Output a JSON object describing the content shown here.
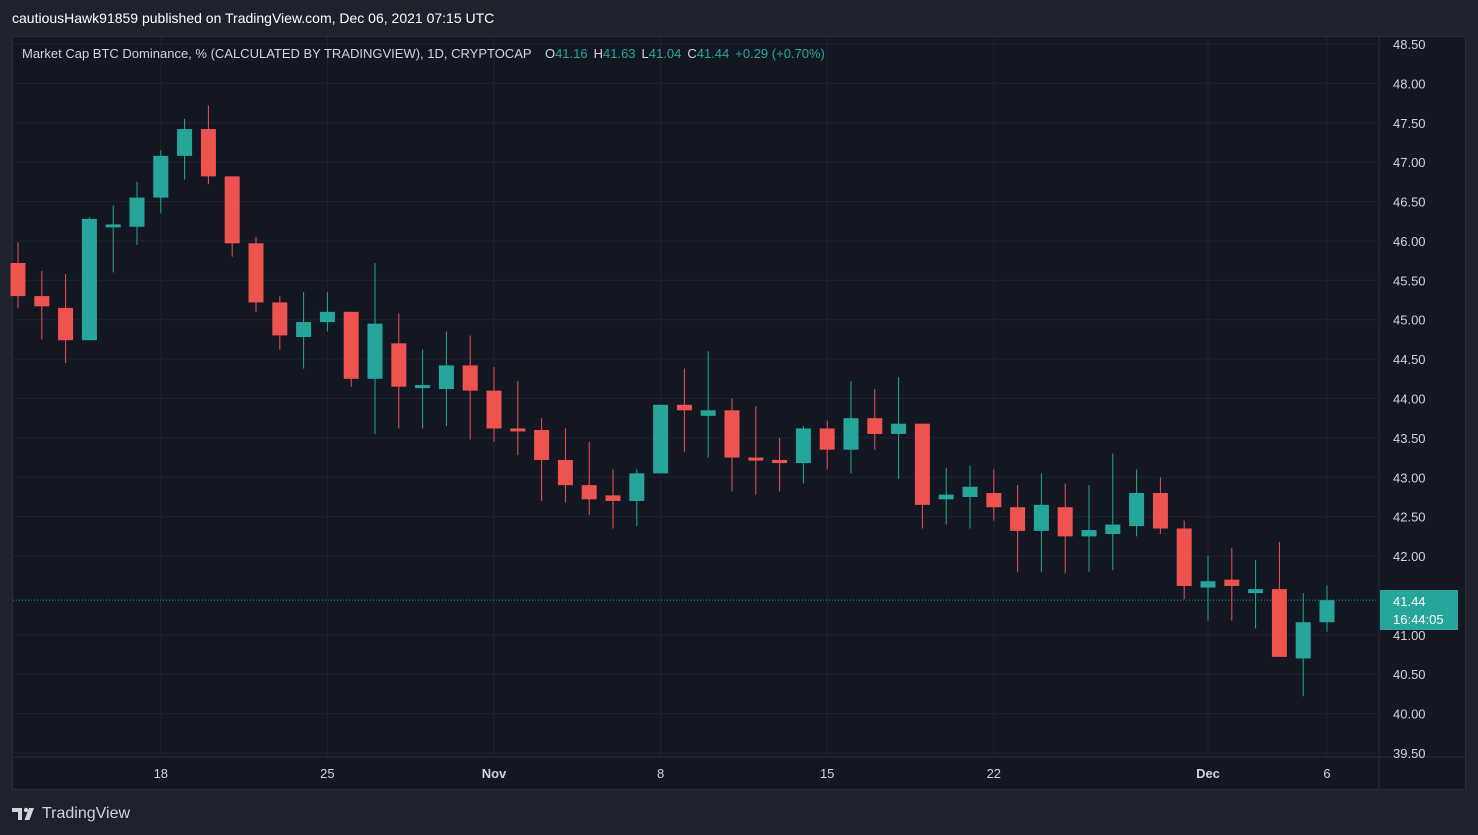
{
  "header": {
    "publish_text": "cautiousHawk91859 published on TradingView.com, Dec 06, 2021 07:15 UTC"
  },
  "legend": {
    "symbol_text": "Market Cap BTC Dominance, % (CALCULATED BY TRADINGVIEW), 1D, CRYPTOCAP",
    "open_key": "O",
    "open": "41.16",
    "high_key": "H",
    "high": "41.63",
    "low_key": "L",
    "low": "41.04",
    "close_key": "C",
    "close": "41.44",
    "change": "+0.29 (+0.70%)"
  },
  "price_tag": {
    "price": "41.44",
    "countdown": "16:44:05"
  },
  "footer": {
    "brand": "TradingView"
  },
  "colors": {
    "up": "#26a69a",
    "down": "#ef5350",
    "background": "#131722",
    "grid": "#1f2330",
    "text": "#d1d4dc"
  },
  "chart_data": {
    "type": "candlestick",
    "title": "Market Cap BTC Dominance, % (CALCULATED BY TRADINGVIEW), 1D, CRYPTOCAP",
    "ylim": [
      39.5,
      48.5
    ],
    "y_ticks": [
      "48.50",
      "48.00",
      "47.50",
      "47.00",
      "46.50",
      "46.00",
      "45.50",
      "45.00",
      "44.50",
      "44.00",
      "43.50",
      "43.00",
      "42.50",
      "42.00",
      "41.00",
      "40.50",
      "40.00",
      "39.50"
    ],
    "x_ticks": [
      {
        "label": "18",
        "index": 6,
        "bold": false
      },
      {
        "label": "25",
        "index": 13,
        "bold": false
      },
      {
        "label": "Nov",
        "index": 20,
        "bold": true
      },
      {
        "label": "8",
        "index": 27,
        "bold": false
      },
      {
        "label": "15",
        "index": 34,
        "bold": false
      },
      {
        "label": "22",
        "index": 41,
        "bold": false
      },
      {
        "label": "Dec",
        "index": 50,
        "bold": true
      },
      {
        "label": "6",
        "index": 55,
        "bold": false
      }
    ],
    "last_price": 41.44,
    "candles": [
      {
        "o": 45.72,
        "h": 45.98,
        "l": 45.15,
        "c": 45.3
      },
      {
        "o": 45.3,
        "h": 45.62,
        "l": 44.75,
        "c": 45.17
      },
      {
        "o": 45.15,
        "h": 45.58,
        "l": 44.45,
        "c": 44.74
      },
      {
        "o": 44.74,
        "h": 46.3,
        "l": 44.74,
        "c": 46.28
      },
      {
        "o": 46.2,
        "h": 46.45,
        "l": 45.6,
        "c": 46.21
      },
      {
        "o": 46.18,
        "h": 46.75,
        "l": 45.95,
        "c": 46.55
      },
      {
        "o": 46.55,
        "h": 47.15,
        "l": 46.35,
        "c": 47.08
      },
      {
        "o": 47.08,
        "h": 47.55,
        "l": 46.78,
        "c": 47.42
      },
      {
        "o": 47.42,
        "h": 47.72,
        "l": 46.72,
        "c": 46.82
      },
      {
        "o": 46.82,
        "h": 46.82,
        "l": 45.8,
        "c": 45.97
      },
      {
        "o": 45.97,
        "h": 46.05,
        "l": 45.1,
        "c": 45.22
      },
      {
        "o": 45.22,
        "h": 45.3,
        "l": 44.62,
        "c": 44.8
      },
      {
        "o": 44.78,
        "h": 45.35,
        "l": 44.38,
        "c": 44.97
      },
      {
        "o": 44.97,
        "h": 45.35,
        "l": 44.85,
        "c": 45.1
      },
      {
        "o": 45.1,
        "h": 45.1,
        "l": 44.15,
        "c": 44.25
      },
      {
        "o": 44.25,
        "h": 45.72,
        "l": 43.55,
        "c": 44.95
      },
      {
        "o": 44.7,
        "h": 45.08,
        "l": 43.62,
        "c": 44.15
      },
      {
        "o": 44.15,
        "h": 44.62,
        "l": 43.62,
        "c": 44.17
      },
      {
        "o": 44.12,
        "h": 44.85,
        "l": 43.65,
        "c": 44.42
      },
      {
        "o": 44.42,
        "h": 44.8,
        "l": 43.48,
        "c": 44.1
      },
      {
        "o": 44.1,
        "h": 44.4,
        "l": 43.45,
        "c": 43.62
      },
      {
        "o": 43.62,
        "h": 44.22,
        "l": 43.28,
        "c": 43.6
      },
      {
        "o": 43.6,
        "h": 43.75,
        "l": 42.7,
        "c": 43.22
      },
      {
        "o": 43.22,
        "h": 43.62,
        "l": 42.68,
        "c": 42.9
      },
      {
        "o": 42.9,
        "h": 43.45,
        "l": 42.52,
        "c": 42.72
      },
      {
        "o": 42.77,
        "h": 43.1,
        "l": 42.35,
        "c": 42.7
      },
      {
        "o": 42.7,
        "h": 43.1,
        "l": 42.38,
        "c": 43.05
      },
      {
        "o": 43.05,
        "h": 43.92,
        "l": 43.05,
        "c": 43.92
      },
      {
        "o": 43.92,
        "h": 44.38,
        "l": 43.32,
        "c": 43.85
      },
      {
        "o": 43.78,
        "h": 44.6,
        "l": 43.25,
        "c": 43.85
      },
      {
        "o": 43.85,
        "h": 44.0,
        "l": 42.82,
        "c": 43.25
      },
      {
        "o": 43.25,
        "h": 43.9,
        "l": 42.78,
        "c": 43.22
      },
      {
        "o": 43.22,
        "h": 43.5,
        "l": 42.82,
        "c": 43.18
      },
      {
        "o": 43.18,
        "h": 43.65,
        "l": 42.92,
        "c": 43.62
      },
      {
        "o": 43.62,
        "h": 43.72,
        "l": 43.1,
        "c": 43.35
      },
      {
        "o": 43.35,
        "h": 44.22,
        "l": 43.05,
        "c": 43.75
      },
      {
        "o": 43.75,
        "h": 44.12,
        "l": 43.35,
        "c": 43.55
      },
      {
        "o": 43.55,
        "h": 44.27,
        "l": 42.98,
        "c": 43.68
      },
      {
        "o": 43.68,
        "h": 43.68,
        "l": 42.35,
        "c": 42.65
      },
      {
        "o": 42.72,
        "h": 43.12,
        "l": 42.4,
        "c": 42.78
      },
      {
        "o": 42.75,
        "h": 43.15,
        "l": 42.35,
        "c": 42.88
      },
      {
        "o": 42.8,
        "h": 43.1,
        "l": 42.45,
        "c": 42.62
      },
      {
        "o": 42.62,
        "h": 42.9,
        "l": 41.8,
        "c": 42.32
      },
      {
        "o": 42.32,
        "h": 43.05,
        "l": 41.8,
        "c": 42.65
      },
      {
        "o": 42.62,
        "h": 42.92,
        "l": 41.78,
        "c": 42.25
      },
      {
        "o": 42.25,
        "h": 42.9,
        "l": 41.8,
        "c": 42.33
      },
      {
        "o": 42.28,
        "h": 43.3,
        "l": 41.82,
        "c": 42.4
      },
      {
        "o": 42.38,
        "h": 43.1,
        "l": 42.25,
        "c": 42.8
      },
      {
        "o": 42.8,
        "h": 43.0,
        "l": 42.28,
        "c": 42.35
      },
      {
        "o": 42.35,
        "h": 42.45,
        "l": 41.45,
        "c": 41.62
      },
      {
        "o": 41.6,
        "h": 42.0,
        "l": 41.18,
        "c": 41.68
      },
      {
        "o": 41.7,
        "h": 42.1,
        "l": 41.18,
        "c": 41.62
      },
      {
        "o": 41.53,
        "h": 41.95,
        "l": 41.08,
        "c": 41.58
      },
      {
        "o": 41.58,
        "h": 42.18,
        "l": 40.72,
        "c": 40.72
      },
      {
        "o": 40.7,
        "h": 41.53,
        "l": 40.22,
        "c": 41.16
      },
      {
        "o": 41.16,
        "h": 41.63,
        "l": 41.04,
        "c": 41.44
      }
    ]
  }
}
